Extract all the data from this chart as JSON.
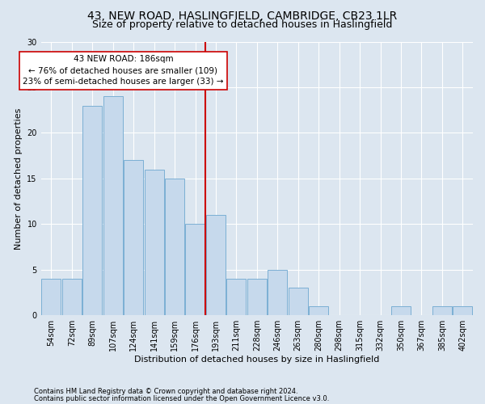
{
  "title": "43, NEW ROAD, HASLINGFIELD, CAMBRIDGE, CB23 1LR",
  "subtitle": "Size of property relative to detached houses in Haslingfield",
  "xlabel": "Distribution of detached houses by size in Haslingfield",
  "ylabel": "Number of detached properties",
  "footnote1": "Contains HM Land Registry data © Crown copyright and database right 2024.",
  "footnote2": "Contains public sector information licensed under the Open Government Licence v3.0.",
  "bar_labels": [
    "54sqm",
    "72sqm",
    "89sqm",
    "107sqm",
    "124sqm",
    "141sqm",
    "159sqm",
    "176sqm",
    "193sqm",
    "211sqm",
    "228sqm",
    "246sqm",
    "263sqm",
    "280sqm",
    "298sqm",
    "315sqm",
    "332sqm",
    "350sqm",
    "367sqm",
    "385sqm",
    "402sqm"
  ],
  "bar_values": [
    4,
    4,
    23,
    24,
    17,
    16,
    15,
    10,
    11,
    4,
    4,
    5,
    3,
    1,
    0,
    0,
    0,
    1,
    0,
    1,
    1
  ],
  "bar_color": "#c6d9ec",
  "bar_edge_color": "#7bafd4",
  "vline_color": "#cc0000",
  "annotation_text": "43 NEW ROAD: 186sqm\n← 76% of detached houses are smaller (109)\n23% of semi-detached houses are larger (33) →",
  "annotation_box_color": "#ffffff",
  "annotation_box_edge_color": "#cc0000",
  "ylim": [
    0,
    30
  ],
  "yticks": [
    0,
    5,
    10,
    15,
    20,
    25,
    30
  ],
  "bg_color": "#dce6f0",
  "plot_bg_color": "#dce6f0",
  "grid_color": "#ffffff",
  "title_fontsize": 10,
  "subtitle_fontsize": 9,
  "axis_label_fontsize": 8,
  "tick_fontsize": 7,
  "annotation_fontsize": 7.5,
  "footnote_fontsize": 6
}
